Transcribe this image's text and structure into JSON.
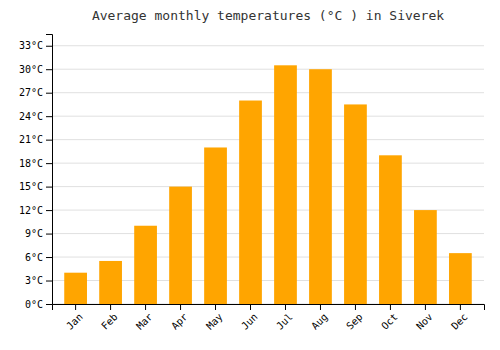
{
  "chart_data": {
    "type": "bar",
    "title": "Average monthly temperatures (°C ) in Siverek",
    "categories": [
      "Jan",
      "Feb",
      "Mar",
      "Apr",
      "May",
      "Jun",
      "Jul",
      "Aug",
      "Sep",
      "Oct",
      "Nov",
      "Dec"
    ],
    "values": [
      4.0,
      5.5,
      10.0,
      15.0,
      20.0,
      26.0,
      30.5,
      30.0,
      25.5,
      19.0,
      12.0,
      6.5
    ],
    "color": "#FFA500",
    "ylim": [
      0,
      34.5
    ],
    "yticks": [
      {
        "value": 0,
        "label": "0°C"
      },
      {
        "value": 3,
        "label": "3°C"
      },
      {
        "value": 6,
        "label": "6°C"
      },
      {
        "value": 9,
        "label": "9°C"
      },
      {
        "value": 12,
        "label": "12°C"
      },
      {
        "value": 15,
        "label": "15°C"
      },
      {
        "value": 18,
        "label": "18°C"
      },
      {
        "value": 21,
        "label": "21°C"
      },
      {
        "value": 24,
        "label": "24°C"
      },
      {
        "value": 27,
        "label": "27°C"
      },
      {
        "value": 30,
        "label": "30°C"
      },
      {
        "value": 33,
        "label": "33°C"
      }
    ],
    "grid": true
  }
}
